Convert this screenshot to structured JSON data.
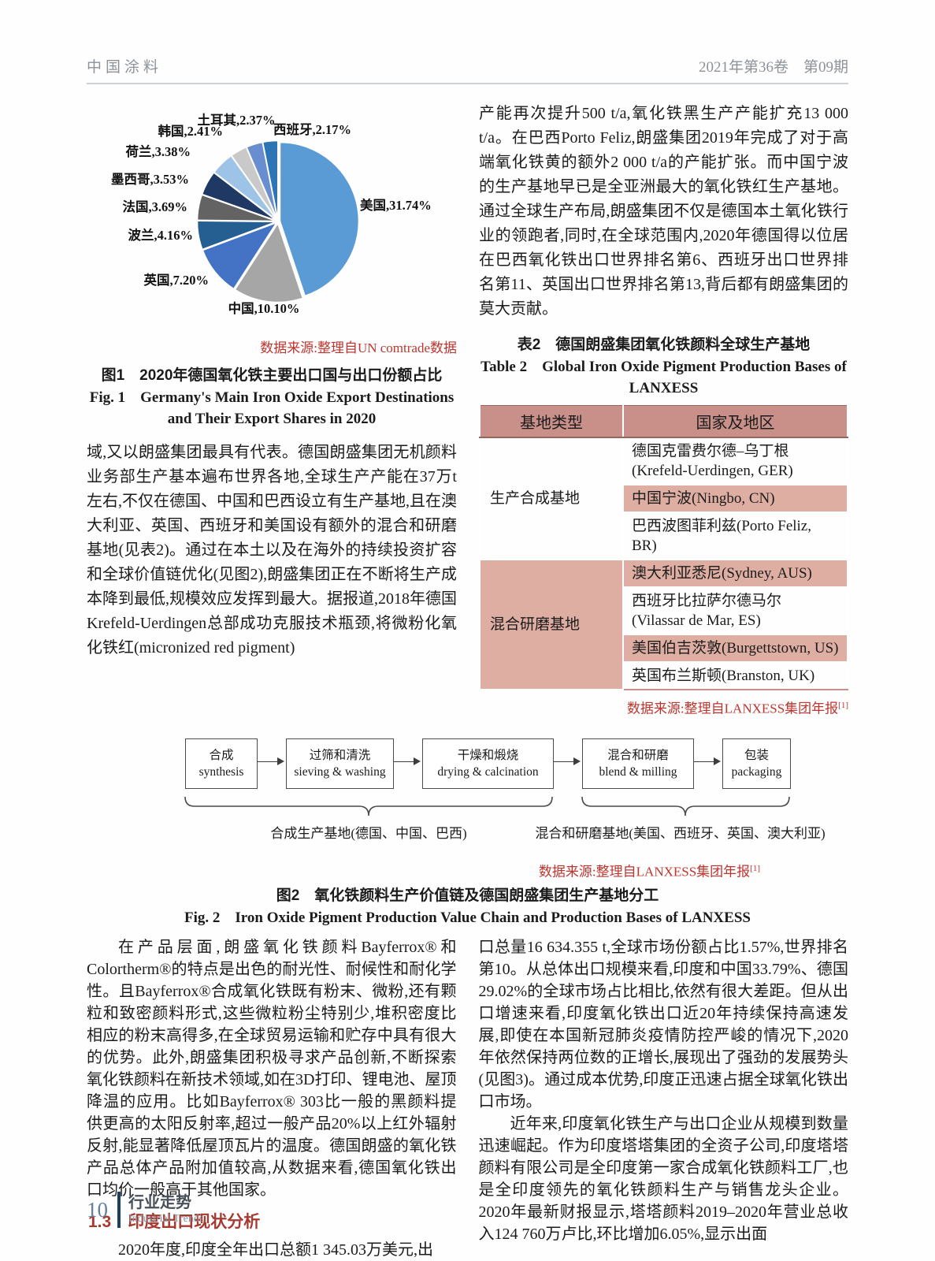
{
  "header": {
    "journal": "中国涂料",
    "issue": "2021年第36卷　第09期"
  },
  "chart_data": {
    "type": "pie",
    "title": "图1　2020年德国氧化铁主要出口国与出口份额占比",
    "title_en": "Fig. 1　Germany's Main Iron Oxide Export Destinations and Their Export Shares in 2020",
    "source": "数据来源:整理自UN comtrade数据",
    "labels": [
      "美国",
      "中国",
      "英国",
      "波兰",
      "法国",
      "墨西哥",
      "荷兰",
      "韩国",
      "土耳其",
      "西班牙"
    ],
    "values": [
      31.74,
      10.1,
      7.2,
      4.16,
      3.69,
      3.53,
      3.38,
      2.41,
      2.37,
      2.17
    ],
    "colors": [
      "#5B9BD5",
      "#A6A6A6",
      "#4472C4",
      "#255E91",
      "#636363",
      "#1F3864",
      "#9DC3E6",
      "#C9C9C9",
      "#698ED0",
      "#2E75B6"
    ],
    "unit": "%",
    "legend_position": "none",
    "layout": "slices start at 12 o'clock, clockwise, labels outside"
  },
  "top_left_par": "域,又以朗盛集团最具有代表。德国朗盛集团无机颜料业务部生产基本遍布世界各地,全球生产产能在37万t左右,不仅在德国、中国和巴西设立有生产基地,且在澳大利亚、英国、西班牙和美国设有额外的混合和研磨基地(见表2)。通过在本土以及在海外的持续投资扩容和全球价值链优化(见图2),朗盛集团正在不断将生产成本降到最低,规模效应发挥到最大。据报道,2018年德国Krefeld-Uerdingen总部成功克服技术瓶颈,将微粉化氧化铁红(micronized red pigment)",
  "top_right_par": "产能再次提升500 t/a,氧化铁黑生产产能扩充13 000 t/a。在巴西Porto Feliz,朗盛集团2019年完成了对于高端氧化铁黄的额外2 000 t/a的产能扩张。而中国宁波的生产基地早已是全亚洲最大的氧化铁红生产基地。通过全球生产布局,朗盛集团不仅是德国本土氧化铁行业的领跑者,同时,在全球范围内,2020年德国得以位居在巴西氧化铁出口世界排名第6、西班牙出口世界排名第11、英国出口世界排名第13,背后都有朗盛集团的莫大贡献。",
  "table2": {
    "title_zh": "表2　德国朗盛集团氧化铁颜料全球生产基地",
    "title_en": "Table 2　Global Iron Oxide Pigment Production Bases of LANXESS",
    "headers": [
      "基地类型",
      "国家及地区"
    ],
    "groups": [
      {
        "type": "生产合成基地",
        "rows": [
          {
            "lines": [
              "德国克雷费尔德–乌丁根",
              "(Krefeld-Uerdingen, GER)"
            ]
          },
          {
            "lines": [
              "中国宁波(Ningbo, CN)"
            ]
          },
          {
            "lines": [
              "巴西波图菲利兹(Porto Feliz, BR)"
            ]
          }
        ]
      },
      {
        "type": "混合研磨基地",
        "rows": [
          {
            "lines": [
              "澳大利亚悉尼(Sydney, AUS)"
            ]
          },
          {
            "lines": [
              "西班牙比拉萨尔德马尔",
              "(Vilassar de Mar, ES)"
            ]
          },
          {
            "lines": [
              "美国伯吉茨敦(Burgettstown, US)"
            ]
          },
          {
            "lines": [
              "英国布兰斯顿(Branston, UK)"
            ]
          }
        ]
      }
    ],
    "source": "数据来源:整理自LANXESS集团年报",
    "source_sup": "[1]",
    "header_bg": "#C9908A",
    "shade_bg": "#DFAEA3"
  },
  "figure2": {
    "boxes": [
      {
        "zh": "合成",
        "en": "synthesis"
      },
      {
        "zh": "过筛和清洗",
        "en": "sieving & washing"
      },
      {
        "zh": "干燥和煅烧",
        "en": "drying & calcination"
      },
      {
        "zh": "混合和研磨",
        "en": "blend & milling"
      },
      {
        "zh": "包装",
        "en": "packaging"
      }
    ],
    "brace_left_label": "合成生产基地(德国、中国、巴西)",
    "brace_right_label": "混合和研磨基地(美国、西班牙、英国、澳大利亚)",
    "source": "数据来源:整理自LANXESS集团年报",
    "source_sup": "[1]",
    "caption_zh": "图2　氧化铁颜料生产价值链及德国朗盛集团生产基地分工",
    "caption_en": "Fig. 2　Iron Oxide Pigment Production Value Chain and Production Bases of LANXESS"
  },
  "bottom": {
    "left_par1": "在产品层面,朗盛氧化铁颜料Bayferrox®和Colortherm®的特点是出色的耐光性、耐候性和耐化学性。且Bayferrox®合成氧化铁既有粉末、微粉,还有颗粒和致密颜料形式,这些微粒粉尘特别少,堆积密度比相应的粉末高得多,在全球贸易运输和贮存中具有很大的优势。此外,朗盛集团积极寻求产品创新,不断探索氧化铁颜料在新技术领域,如在3D打印、锂电池、屋顶降温的应用。比如Bayferrox® 303比一般的黑颜料提供更高的太阳反射率,超过一般产品20%以上红外辐射反射,能显著降低屋顶瓦片的温度。德国朗盛的氧化铁产品总体产品附加值较高,从数据来看,德国氧化铁出口均价一般高于其他国家。",
    "section_heading": "1.3　印度出口现状分析",
    "left_par2": "2020年度,印度全年出口总额1 345.03万美元,出",
    "right_par1": "口总量16 634.355 t,全球市场份额占比1.57%,世界排名第10。从总体出口规模来看,印度和中国33.79%、德国29.02%的全球市场占比相比,依然有很大差距。但从出口增速来看,印度氧化铁出口近20年持续保持高速发展,即使在本国新冠肺炎疫情防控严峻的情况下,2020年依然保持两位数的正增长,展现出了强劲的发展势头(见图3)。通过成本优势,印度正迅速占据全球氧化铁出口市场。",
    "right_par2": "近年来,印度氧化铁生产与出口企业从规模到数量迅速崛起。作为印度塔塔集团的全资子公司,印度塔塔颜料有限公司是全印度第一家合成氧化铁颜料工厂,也是全印度领先的氧化铁颜料生产与销售龙头企业。2020年最新财报显示,塔塔颜料2019–2020年营业总收入124 760万卢比,环比增加6.05%,显示出面"
  },
  "footer": {
    "page": "10",
    "section_zh": "行业走势",
    "section_en": "Industrial Trends"
  },
  "theme": {
    "accent_red": "#BE352F",
    "heading_red": "#A63A31",
    "footer_blue": "#1E3F63"
  }
}
